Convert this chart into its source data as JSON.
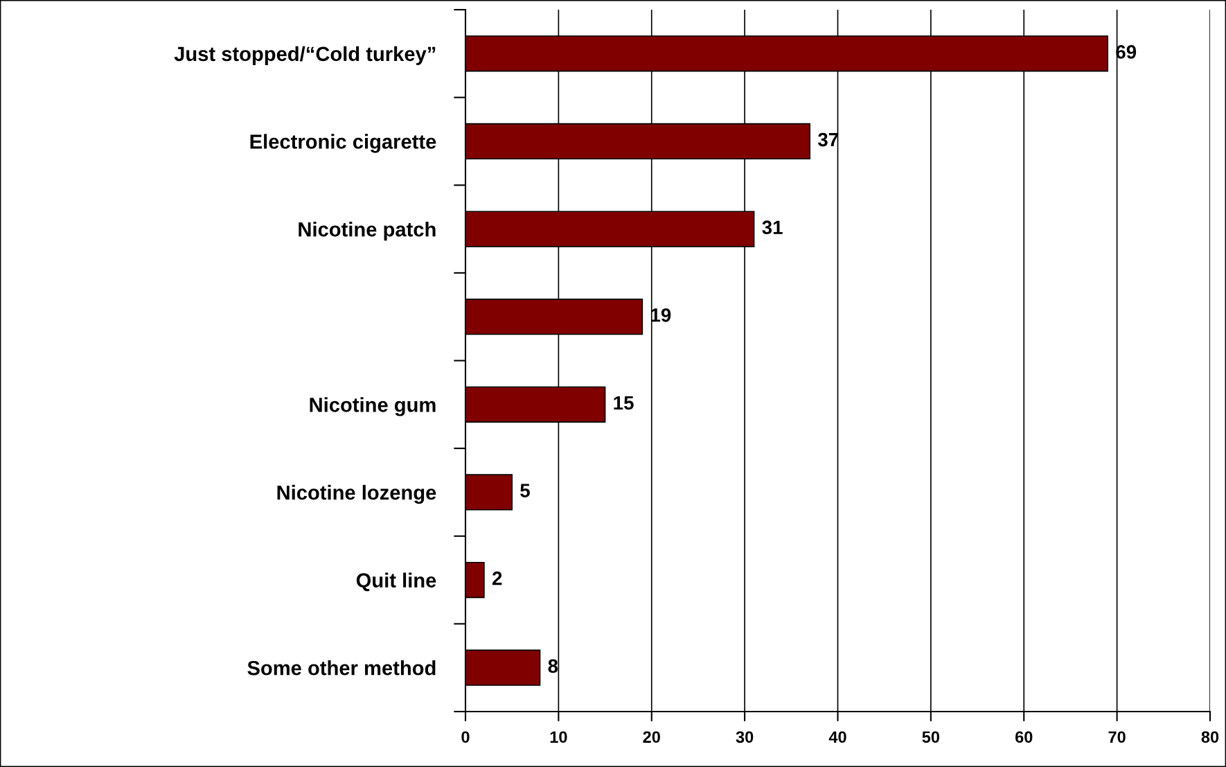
{
  "chart_data": {
    "type": "bar",
    "orientation": "horizontal",
    "categories": [
      "Just stopped/“Cold turkey”",
      "Electronic cigarette",
      "Nicotine patch",
      null,
      "Nicotine gum",
      "Nicotine lozenge",
      "Quit line",
      "Some other method"
    ],
    "values": [
      69,
      37,
      31,
      19,
      15,
      5,
      2,
      8
    ],
    "color": "#800000",
    "xlim": [
      0,
      80
    ],
    "xticks": [
      0,
      10,
      20,
      30,
      40,
      50,
      60,
      70,
      80
    ],
    "grid": "x",
    "legend": false,
    "data_labels": true
  }
}
